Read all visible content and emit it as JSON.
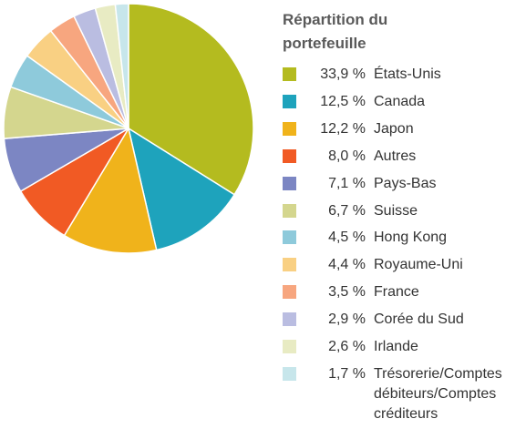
{
  "chart_data": {
    "type": "pie",
    "title": "Répartition du portefeuille",
    "categories": [
      "États-Unis",
      "Canada",
      "Japon",
      "Autres",
      "Pays-Bas",
      "Suisse",
      "Hong Kong",
      "Royaume-Uni",
      "France",
      "Corée du Sud",
      "Irlande",
      "Trésorerie/Comptes débiteurs/Comptes créditeurs"
    ],
    "values": [
      33.9,
      12.5,
      12.2,
      8.0,
      7.1,
      6.7,
      4.5,
      4.4,
      3.5,
      2.9,
      2.6,
      1.7
    ],
    "value_labels": [
      "33,9 %",
      "12,5 %",
      "12,2 %",
      "8,0 %",
      "7,1 %",
      "6,7 %",
      "4,5 %",
      "4,4 %",
      "3,5 %",
      "2,9 %",
      "2,6 %",
      "1,7 %"
    ],
    "colors": [
      "#b4bb1f",
      "#1ea3bc",
      "#f0b31b",
      "#f15a24",
      "#7c86c3",
      "#d4d68e",
      "#8ecadb",
      "#f9d083",
      "#f7a67f",
      "#babde1",
      "#e8ebc3",
      "#c7e6eb"
    ]
  }
}
